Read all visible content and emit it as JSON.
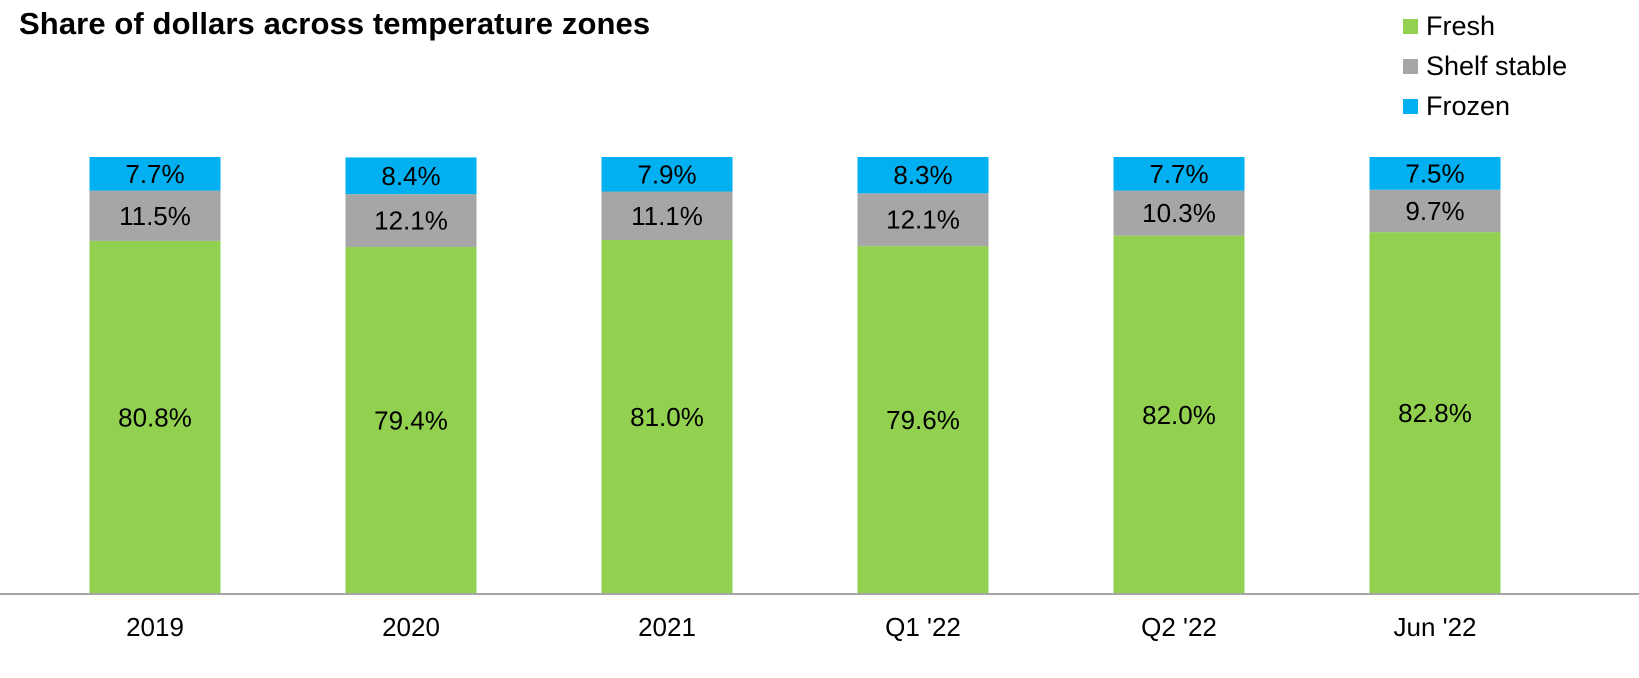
{
  "chart_data": {
    "type": "bar",
    "stacked": true,
    "title": "Share of dollars across temperature zones",
    "categories": [
      "2019",
      "2020",
      "2021",
      "Q1 '22",
      "Q2 '22",
      "Jun '22"
    ],
    "series": [
      {
        "name": "Fresh",
        "color": "#92D050",
        "values": [
          80.8,
          79.4,
          81.0,
          79.6,
          82.0,
          82.8
        ],
        "labels": [
          "80.8%",
          "79.4%",
          "81.0%",
          "79.6%",
          "82.0%",
          "82.8%"
        ]
      },
      {
        "name": "Shelf stable",
        "color": "#A6A6A6",
        "values": [
          11.5,
          12.1,
          11.1,
          12.1,
          10.3,
          9.7
        ],
        "labels": [
          "11.5%",
          "12.1%",
          "11.1%",
          "12.1%",
          "10.3%",
          "9.7%"
        ]
      },
      {
        "name": "Frozen",
        "color": "#00B0F0",
        "values": [
          7.7,
          8.4,
          7.9,
          8.3,
          7.7,
          7.5
        ],
        "labels": [
          "7.7%",
          "8.4%",
          "7.9%",
          "8.3%",
          "7.7%",
          "7.5%"
        ]
      }
    ],
    "ylim": [
      0,
      100
    ],
    "grid": false,
    "legend_position": "top-right"
  }
}
